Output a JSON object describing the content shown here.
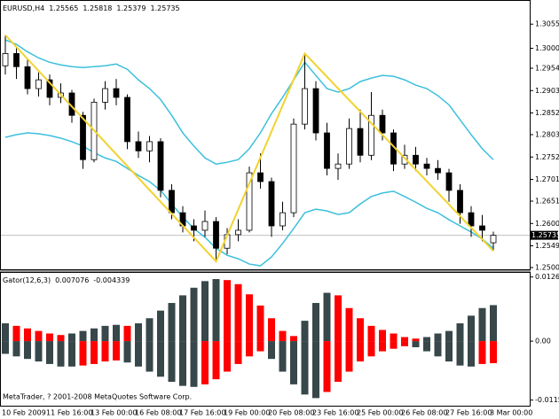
{
  "chart_data": {
    "type": "candlestick",
    "symbol": "EURUSD,H4",
    "categories": [
      "10 Feb 2009",
      null,
      null,
      null,
      "11 Feb 16:00",
      null,
      null,
      null,
      "13 Feb 00:00",
      null,
      null,
      null,
      "16 Feb 08:00",
      null,
      null,
      null,
      "17 Feb 16:00",
      null,
      null,
      null,
      "19 Feb 00:00",
      null,
      null,
      null,
      "20 Feb 08:00",
      null,
      null,
      null,
      "23 Feb 16:00",
      null,
      null,
      null,
      "25 Feb 00:00",
      null,
      null,
      null,
      "26 Feb 08:00",
      null,
      null,
      null,
      "27 Feb 16:00",
      null,
      null,
      null,
      "3 Mar 00:00"
    ],
    "open": [
      1.296,
      1.2988,
      1.2958,
      1.2908,
      1.2928,
      1.2888,
      1.2898,
      1.2847,
      1.2746,
      1.2877,
      1.2908,
      1.2888,
      1.2787,
      1.2766,
      1.2787,
      1.2676,
      1.2625,
      1.2595,
      1.2585,
      1.2605,
      1.2544,
      1.2575,
      1.2585,
      1.2716,
      1.2696,
      1.2595,
      1.2625,
      1.2827,
      1.2908,
      1.2807,
      1.2726,
      1.2736,
      1.2817,
      1.2756,
      1.2847,
      1.2807,
      1.2736,
      1.2756,
      1.2736,
      1.2726,
      1.2716,
      1.2676,
      1.2625,
      1.2595,
      1.25565
    ],
    "high": [
      1.303,
      1.3,
      1.2975,
      1.2945,
      1.294,
      1.292,
      1.2905,
      1.2855,
      1.2885,
      1.2925,
      1.293,
      1.2895,
      1.281,
      1.28,
      1.2795,
      1.269,
      1.264,
      1.261,
      1.263,
      1.2615,
      1.259,
      1.261,
      1.273,
      1.276,
      1.2705,
      1.265,
      1.284,
      1.2988,
      1.2925,
      1.283,
      1.276,
      1.284,
      1.286,
      1.29,
      1.286,
      1.2815,
      1.278,
      1.2775,
      1.275,
      1.2745,
      1.2725,
      1.269,
      1.264,
      1.262,
      1.25818
    ],
    "low": [
      1.294,
      1.293,
      1.2895,
      1.289,
      1.287,
      1.2875,
      1.283,
      1.2725,
      1.274,
      1.286,
      1.287,
      1.277,
      1.275,
      1.274,
      1.266,
      1.261,
      1.258,
      1.256,
      1.257,
      1.2514,
      1.253,
      1.256,
      1.258,
      1.268,
      1.257,
      1.2585,
      1.2615,
      1.2815,
      1.279,
      1.271,
      1.27,
      1.2725,
      1.274,
      1.2745,
      1.279,
      1.272,
      1.2725,
      1.272,
      1.271,
      1.27,
      1.265,
      1.26,
      1.257,
      1.256,
      1.25379
    ],
    "close": [
      1.2988,
      1.2958,
      1.2908,
      1.2928,
      1.2888,
      1.2898,
      1.2847,
      1.2746,
      1.2877,
      1.2908,
      1.2888,
      1.2787,
      1.2766,
      1.2787,
      1.2676,
      1.2625,
      1.2595,
      1.2585,
      1.2605,
      1.2544,
      1.2575,
      1.2585,
      1.2716,
      1.2696,
      1.2595,
      1.2625,
      1.2827,
      1.2908,
      1.2807,
      1.2726,
      1.2736,
      1.2817,
      1.2756,
      1.2847,
      1.2807,
      1.2736,
      1.2756,
      1.2736,
      1.2726,
      1.2716,
      1.2676,
      1.2625,
      1.2595,
      1.2585,
      1.25735
    ],
    "colors": {
      "up": "#ffffff",
      "down": "#000000",
      "wick": "#000000"
    },
    "ylim": [
      1.2496,
      1.3106
    ],
    "yticks": [
      {
        "value": 1.3055,
        "label": "1.30550"
      },
      {
        "value": 1.3,
        "label": "1.30000"
      },
      1.29545,
      1.29035,
      1.28525,
      {
        "value": 1.2803,
        "label": "1.28030"
      },
      {
        "value": 1.2752,
        "label": "1.27520"
      },
      {
        "value": 1.2701,
        "label": "1.27010"
      },
      1.26515,
      1.26005,
      1.25495,
      {
        "value": 1.25,
        "label": "1.25000"
      }
    ],
    "bands": {
      "color": "#3cc0dc",
      "upper": [
        1.3019,
        1.3009,
        1.2992,
        1.2978,
        1.2968,
        1.2962,
        1.2958,
        1.2956,
        1.2958,
        1.296,
        1.2964,
        1.2952,
        1.2928,
        1.2908,
        1.2883,
        1.2847,
        1.2807,
        1.2777,
        1.275,
        1.2736,
        1.274,
        1.2746,
        1.2771,
        1.2807,
        1.2851,
        1.2888,
        1.2928,
        1.2968,
        1.2938,
        1.2908,
        1.29,
        1.2908,
        1.2924,
        1.2932,
        1.2938,
        1.2936,
        1.2928,
        1.2916,
        1.2908,
        1.2892,
        1.2871,
        1.2837,
        1.2803,
        1.2771,
        1.2746
      ],
      "lower": [
        1.2797,
        1.2803,
        1.2807,
        1.2805,
        1.2801,
        1.2795,
        1.2787,
        1.2777,
        1.2762,
        1.275,
        1.2742,
        1.2726,
        1.271,
        1.2696,
        1.2676,
        1.2645,
        1.2615,
        1.2589,
        1.2569,
        1.2544,
        1.2528,
        1.252,
        1.2508,
        1.2504,
        1.2524,
        1.2555,
        1.2589,
        1.2625,
        1.2633,
        1.2629,
        1.2621,
        1.2625,
        1.2645,
        1.2662,
        1.267,
        1.2674,
        1.2662,
        1.2649,
        1.2635,
        1.2625,
        1.2609,
        1.2595,
        1.2581,
        1.2565,
        1.2544
      ]
    },
    "zigzag": {
      "color": "#f2d22e",
      "x": [
        0,
        19,
        27,
        44
      ],
      "values": [
        1.303,
        1.2514,
        1.2988,
        1.25379
      ]
    },
    "gator": {
      "type": "bar",
      "name": "Gator(12,6,3)",
      "increase_color": "#37474a",
      "decrease_color": "#ff0000",
      "upper": [
        0.0035,
        0.003,
        0.0025,
        0.002,
        0.0015,
        0.0012,
        0.0015,
        0.002,
        0.0025,
        0.003,
        0.0032,
        0.003,
        0.0035,
        0.0045,
        0.006,
        0.0075,
        0.009,
        0.0105,
        0.0118,
        0.0122,
        0.012,
        0.0112,
        0.0092,
        0.007,
        0.0045,
        0.002,
        0.001,
        0.004,
        0.0075,
        0.0095,
        0.009,
        0.0065,
        0.0045,
        0.003,
        0.0022,
        0.0015,
        0.0008,
        0.0005,
        0.0008,
        0.0015,
        0.002,
        0.0035,
        0.005,
        0.0065,
        0.007076
      ],
      "lower": [
        -0.0025,
        -0.003,
        -0.0035,
        -0.004,
        -0.0045,
        -0.005,
        -0.005,
        -0.0048,
        -0.0045,
        -0.004,
        -0.0038,
        -0.0042,
        -0.005,
        -0.006,
        -0.007,
        -0.008,
        -0.0088,
        -0.009,
        -0.0085,
        -0.0075,
        -0.006,
        -0.0045,
        -0.003,
        -0.002,
        -0.0035,
        -0.006,
        -0.0085,
        -0.0105,
        -0.0112,
        -0.01,
        -0.008,
        -0.006,
        -0.004,
        -0.003,
        -0.002,
        -0.0015,
        -0.001,
        -0.0012,
        -0.002,
        -0.003,
        -0.004,
        -0.0048,
        -0.005,
        -0.0045,
        -0.004339
      ],
      "ylim": [
        -0.0127,
        0.0136
      ],
      "yticks": [
        0.012613,
        {
          "value": 0,
          "label": "0.00"
        },
        -0.011594
      ]
    }
  },
  "footer": "MetaTrader, ? 2001-2008 MetaQuotes Software Corp."
}
